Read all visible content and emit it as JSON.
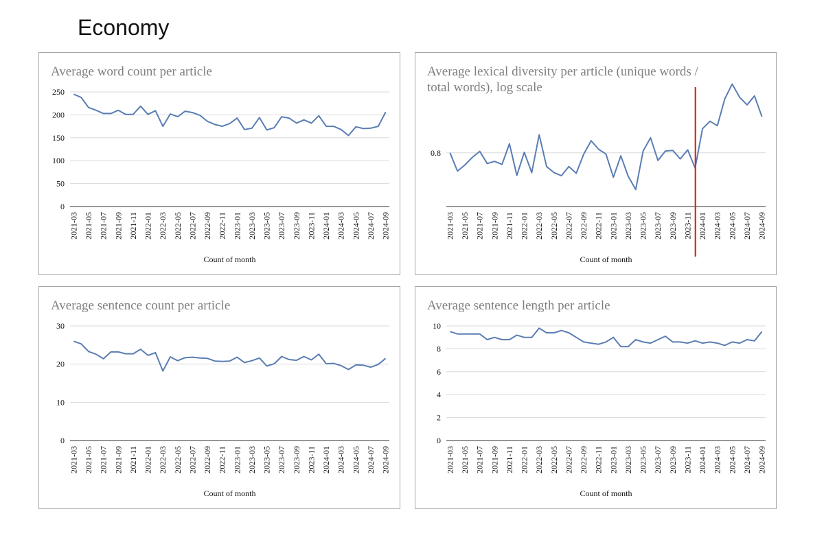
{
  "page": {
    "title": "Economy"
  },
  "chart_data": [
    {
      "id": "word-count",
      "type": "line",
      "title": "Average word count per article",
      "xlabel": "Count of month",
      "ylabel": "",
      "ylim": [
        0,
        250
      ],
      "yticks": [
        "0",
        "50",
        "100",
        "150",
        "200",
        "250"
      ],
      "scale": "linear",
      "categories": [
        "2021-03",
        "2021-04",
        "2021-05",
        "2021-06",
        "2021-07",
        "2021-08",
        "2021-09",
        "2021-10",
        "2021-11",
        "2021-12",
        "2022-01",
        "2022-02",
        "2022-03",
        "2022-04",
        "2022-05",
        "2022-06",
        "2022-07",
        "2022-08",
        "2022-09",
        "2022-10",
        "2022-11",
        "2022-12",
        "2023-01",
        "2023-02",
        "2023-03",
        "2023-04",
        "2023-05",
        "2023-06",
        "2023-07",
        "2023-08",
        "2023-09",
        "2023-10",
        "2023-11",
        "2023-12",
        "2024-01",
        "2024-02",
        "2024-03",
        "2024-04",
        "2024-05",
        "2024-06",
        "2024-07",
        "2024-08",
        "2024-09"
      ],
      "tick_labels": [
        "2021-03",
        "2021-05",
        "2021-07",
        "2021-09",
        "2021-11",
        "2022-01",
        "2022-03",
        "2022-05",
        "2022-07",
        "2022-09",
        "2022-11",
        "2023-01",
        "2023-03",
        "2023-05",
        "2023-07",
        "2023-09",
        "2023-11",
        "2024-01",
        "2024-03",
        "2024-05",
        "2024-07",
        "2024-09"
      ],
      "series": [
        {
          "name": "Average word count",
          "values": [
            245,
            238,
            216,
            210,
            203,
            203,
            210,
            201,
            201,
            219,
            201,
            209,
            175,
            202,
            196,
            208,
            205,
            199,
            186,
            179,
            175,
            181,
            193,
            168,
            171,
            194,
            167,
            172,
            196,
            193,
            182,
            189,
            182,
            198,
            175,
            175,
            168,
            155,
            174,
            170,
            171,
            175,
            206
          ]
        }
      ]
    },
    {
      "id": "lexical-diversity",
      "type": "line",
      "title": "Average lexical diversity per article (unique words / total words), log scale",
      "title_lines": [
        "Average lexical diversity per article (unique words /",
        "total words), log scale"
      ],
      "xlabel": "Count of month",
      "ylabel": "",
      "scale": "log",
      "ylim": [
        0.7825,
        0.8215
      ],
      "yticks": [
        "0.8"
      ],
      "yticks_values": [
        0.8
      ],
      "annotation": {
        "type": "vertical-line",
        "color": "#d9291c",
        "at_category": "2023-12"
      },
      "categories": [
        "2021-03",
        "2021-04",
        "2021-05",
        "2021-06",
        "2021-07",
        "2021-08",
        "2021-09",
        "2021-10",
        "2021-11",
        "2021-12",
        "2022-01",
        "2022-02",
        "2022-03",
        "2022-04",
        "2022-05",
        "2022-06",
        "2022-07",
        "2022-08",
        "2022-09",
        "2022-10",
        "2022-11",
        "2022-12",
        "2023-01",
        "2023-02",
        "2023-03",
        "2023-04",
        "2023-05",
        "2023-06",
        "2023-07",
        "2023-08",
        "2023-09",
        "2023-10",
        "2023-11",
        "2023-12",
        "2024-01",
        "2024-02",
        "2024-03",
        "2024-04",
        "2024-05",
        "2024-06",
        "2024-07",
        "2024-08",
        "2024-09"
      ],
      "tick_labels": [
        "2021-03",
        "2021-05",
        "2021-07",
        "2021-09",
        "2021-11",
        "2022-01",
        "2022-03",
        "2022-05",
        "2022-07",
        "2022-09",
        "2022-11",
        "2023-01",
        "2023-03",
        "2023-05",
        "2023-07",
        "2023-09",
        "2023-11",
        "2024-01",
        "2024-03",
        "2024-05",
        "2024-07",
        "2024-09"
      ],
      "series": [
        {
          "name": "Average lexical diversity",
          "values": [
            0.8,
            0.794,
            0.796,
            0.7985,
            0.8005,
            0.7965,
            0.7972,
            0.7962,
            0.803,
            0.7926,
            0.8002,
            0.7935,
            0.806,
            0.7955,
            0.7935,
            0.7925,
            0.7955,
            0.7933,
            0.7996,
            0.804,
            0.8012,
            0.7996,
            0.792,
            0.799,
            0.7923,
            0.788,
            0.8006,
            0.805,
            0.7975,
            0.8006,
            0.8008,
            0.798,
            0.801,
            0.795,
            0.808,
            0.8105,
            0.809,
            0.818,
            0.823,
            0.8185,
            0.816,
            0.819,
            0.812
          ]
        }
      ]
    },
    {
      "id": "sentence-count",
      "type": "line",
      "title": "Average sentence count per article",
      "xlabel": "Count of month",
      "ylabel": "",
      "ylim": [
        0,
        30
      ],
      "yticks": [
        "0",
        "10",
        "20",
        "30"
      ],
      "scale": "linear",
      "categories": [
        "2021-03",
        "2021-04",
        "2021-05",
        "2021-06",
        "2021-07",
        "2021-08",
        "2021-09",
        "2021-10",
        "2021-11",
        "2021-12",
        "2022-01",
        "2022-02",
        "2022-03",
        "2022-04",
        "2022-05",
        "2022-06",
        "2022-07",
        "2022-08",
        "2022-09",
        "2022-10",
        "2022-11",
        "2022-12",
        "2023-01",
        "2023-02",
        "2023-03",
        "2023-04",
        "2023-05",
        "2023-06",
        "2023-07",
        "2023-08",
        "2023-09",
        "2023-10",
        "2023-11",
        "2023-12",
        "2024-01",
        "2024-02",
        "2024-03",
        "2024-04",
        "2024-05",
        "2024-06",
        "2024-07",
        "2024-08",
        "2024-09"
      ],
      "tick_labels": [
        "2021-03",
        "2021-05",
        "2021-07",
        "2021-09",
        "2021-11",
        "2022-01",
        "2022-03",
        "2022-05",
        "2022-07",
        "2022-09",
        "2022-11",
        "2023-01",
        "2023-03",
        "2023-05",
        "2023-07",
        "2023-09",
        "2023-11",
        "2024-01",
        "2024-03",
        "2024-05",
        "2024-07",
        "2024-09"
      ],
      "series": [
        {
          "name": "Average sentence count",
          "values": [
            26.0,
            25.3,
            23.3,
            22.6,
            21.4,
            23.2,
            23.2,
            22.7,
            22.7,
            23.9,
            22.3,
            23.0,
            18.2,
            21.9,
            20.9,
            21.7,
            21.8,
            21.6,
            21.5,
            20.8,
            20.7,
            20.8,
            21.8,
            20.4,
            20.9,
            21.6,
            19.5,
            20.1,
            22.0,
            21.2,
            21.0,
            22.0,
            21.1,
            22.6,
            20.1,
            20.2,
            19.6,
            18.6,
            19.8,
            19.7,
            19.2,
            19.9,
            21.5
          ]
        }
      ]
    },
    {
      "id": "sentence-length",
      "type": "line",
      "title": "Average sentence length per article",
      "xlabel": "Count of month",
      "ylabel": "",
      "ylim": [
        0,
        10
      ],
      "yticks": [
        "0",
        "2",
        "4",
        "6",
        "8",
        "10"
      ],
      "scale": "linear",
      "categories": [
        "2021-03",
        "2021-04",
        "2021-05",
        "2021-06",
        "2021-07",
        "2021-08",
        "2021-09",
        "2021-10",
        "2021-11",
        "2021-12",
        "2022-01",
        "2022-02",
        "2022-03",
        "2022-04",
        "2022-05",
        "2022-06",
        "2022-07",
        "2022-08",
        "2022-09",
        "2022-10",
        "2022-11",
        "2022-12",
        "2023-01",
        "2023-02",
        "2023-03",
        "2023-04",
        "2023-05",
        "2023-06",
        "2023-07",
        "2023-08",
        "2023-09",
        "2023-10",
        "2023-11",
        "2023-12",
        "2024-01",
        "2024-02",
        "2024-03",
        "2024-04",
        "2024-05",
        "2024-06",
        "2024-07",
        "2024-08",
        "2024-09"
      ],
      "tick_labels": [
        "2021-03",
        "2021-05",
        "2021-07",
        "2021-09",
        "2021-11",
        "2022-01",
        "2022-03",
        "2022-05",
        "2022-07",
        "2022-09",
        "2022-11",
        "2023-01",
        "2023-03",
        "2023-05",
        "2023-07",
        "2023-09",
        "2023-11",
        "2024-01",
        "2024-03",
        "2024-05",
        "2024-07",
        "2024-09"
      ],
      "series": [
        {
          "name": "Average sentence length",
          "values": [
            9.5,
            9.3,
            9.3,
            9.3,
            9.3,
            8.8,
            9.0,
            8.8,
            8.8,
            9.2,
            9.0,
            9.0,
            9.8,
            9.4,
            9.4,
            9.6,
            9.4,
            9.0,
            8.6,
            8.5,
            8.4,
            8.6,
            9.0,
            8.2,
            8.2,
            8.8,
            8.6,
            8.5,
            8.8,
            9.1,
            8.6,
            8.6,
            8.5,
            8.7,
            8.5,
            8.6,
            8.5,
            8.3,
            8.6,
            8.5,
            8.8,
            8.7,
            9.5
          ]
        }
      ]
    }
  ]
}
